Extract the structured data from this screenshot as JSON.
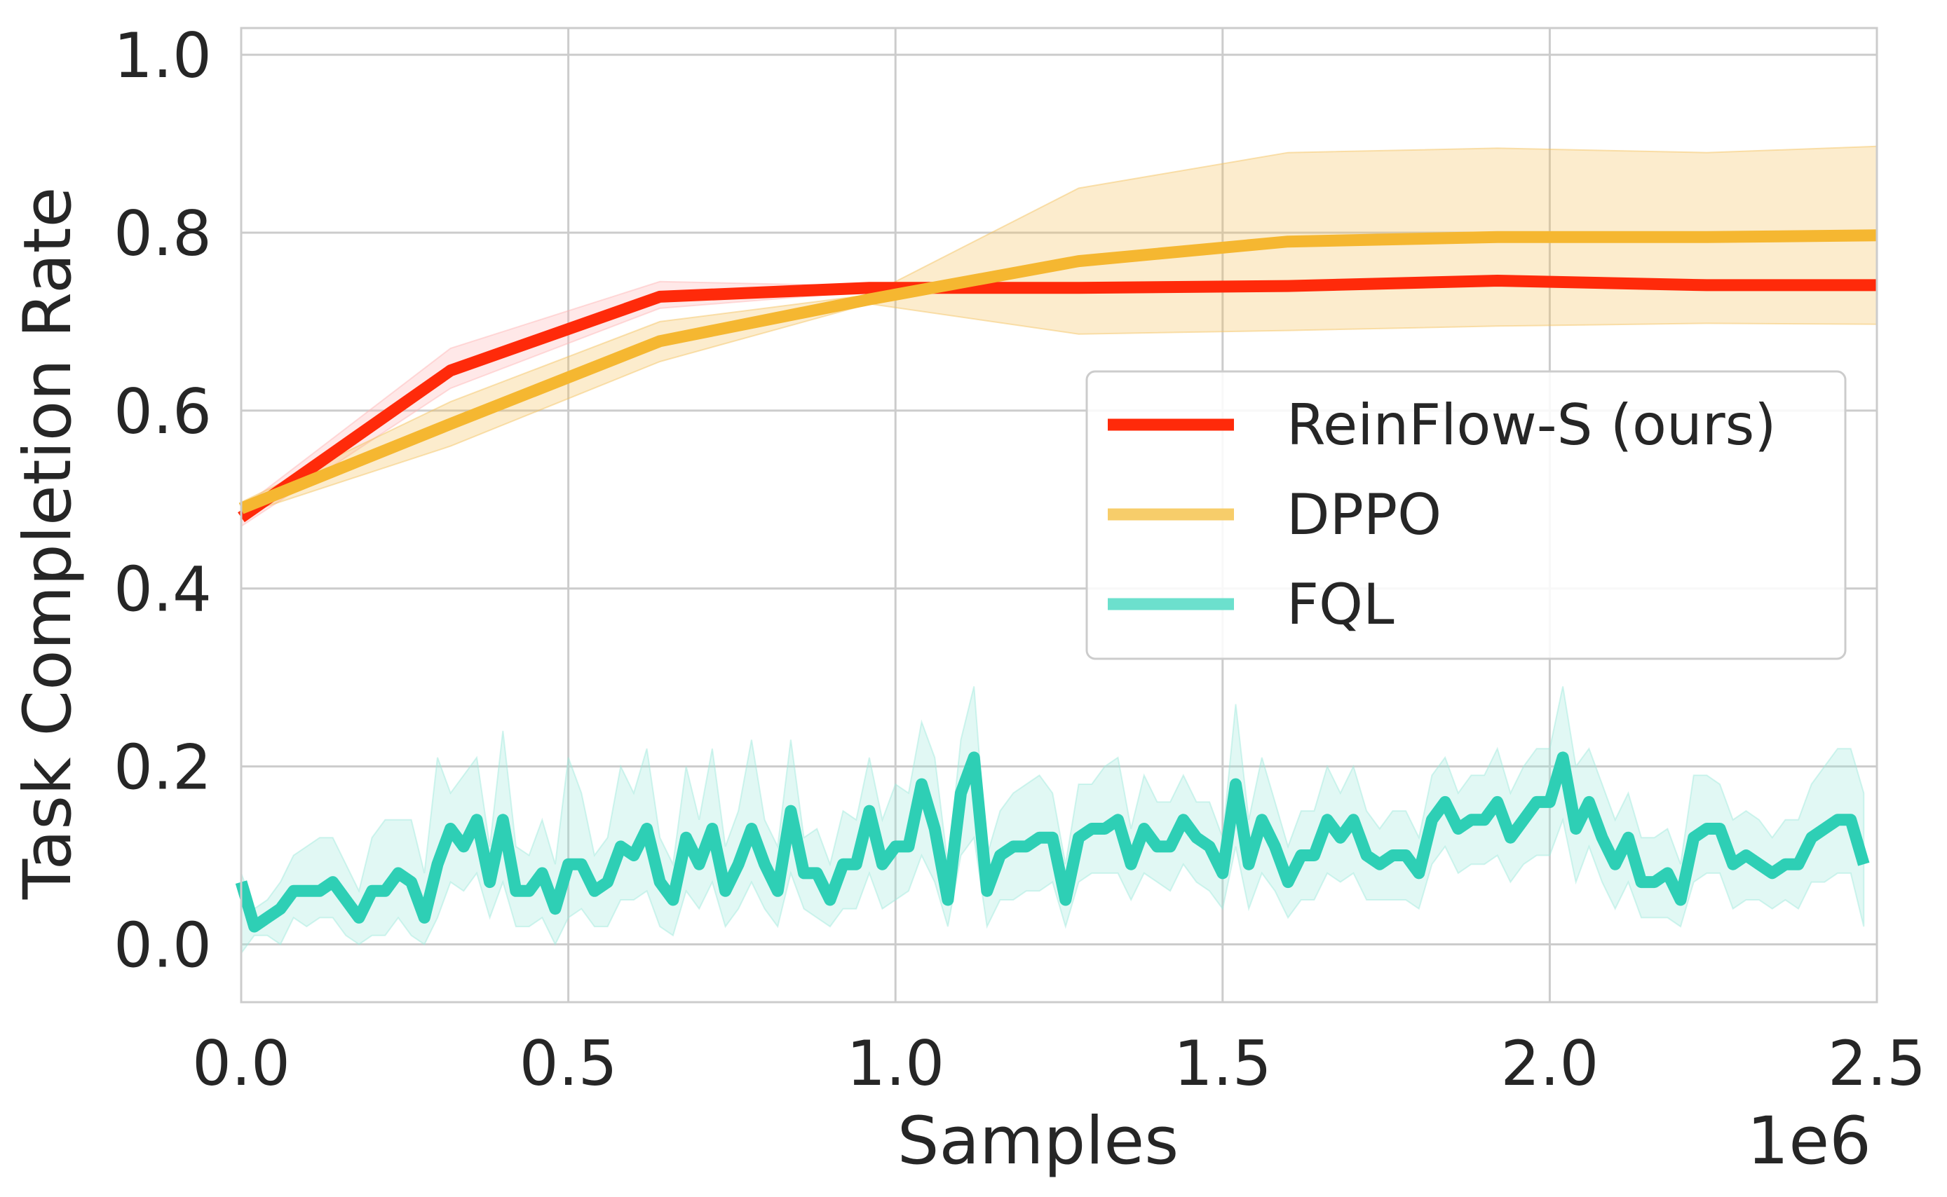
{
  "chart_data": {
    "type": "line",
    "title": "",
    "xlabel": "Samples",
    "ylabel": "Task Completion Rate",
    "x_offset_label": "1e6",
    "xlim": [
      0,
      2500000
    ],
    "ylim": [
      -0.065,
      1.03
    ],
    "xticks": [
      0,
      500000,
      1000000,
      1500000,
      2000000,
      2500000
    ],
    "xtick_labels": [
      "0.0",
      "0.5",
      "1.0",
      "1.5",
      "2.0",
      "2.5"
    ],
    "yticks": [
      0.0,
      0.2,
      0.4,
      0.6,
      0.8,
      1.0
    ],
    "ytick_labels": [
      "0.0",
      "0.2",
      "0.4",
      "0.6",
      "0.8",
      "1.0"
    ],
    "grid": true,
    "legend_position": "center-right",
    "series": [
      {
        "name": "ReinFlow-S (ours)",
        "color": "#FF2A0A",
        "band_color": "#FFB3B3",
        "x": [
          0,
          320000,
          640000,
          960000,
          1280000,
          1600000,
          1920000,
          2240000,
          2500000
        ],
        "y": [
          0.48,
          0.645,
          0.728,
          0.738,
          0.738,
          0.74,
          0.746,
          0.741,
          0.741
        ],
        "upper": [
          0.49,
          0.67,
          0.745,
          0.74,
          0.742,
          0.743,
          0.75,
          0.745,
          0.745
        ],
        "lower": [
          0.47,
          0.625,
          0.715,
          0.734,
          0.734,
          0.737,
          0.742,
          0.737,
          0.737
        ]
      },
      {
        "name": "DPPO",
        "color": "#F5B731",
        "legend_color": "#F7CD6A",
        "band_color": "#F5C15B",
        "x": [
          0,
          320000,
          640000,
          960000,
          1280000,
          1600000,
          1920000,
          2240000,
          2500000
        ],
        "y": [
          0.49,
          0.585,
          0.678,
          0.725,
          0.768,
          0.79,
          0.795,
          0.795,
          0.797
        ],
        "upper": [
          0.497,
          0.61,
          0.7,
          0.73,
          0.85,
          0.89,
          0.895,
          0.89,
          0.897
        ],
        "lower": [
          0.483,
          0.56,
          0.655,
          0.72,
          0.686,
          0.69,
          0.695,
          0.698,
          0.697
        ]
      },
      {
        "name": "FQL",
        "color": "#2ECFB5",
        "legend_color": "#6CE0CD",
        "band_color": "#9DE9DB",
        "x_start": 0,
        "x_step": 20000,
        "y": [
          0.07,
          0.02,
          0.03,
          0.04,
          0.06,
          0.06,
          0.06,
          0.07,
          0.05,
          0.03,
          0.06,
          0.06,
          0.08,
          0.07,
          0.03,
          0.09,
          0.13,
          0.11,
          0.14,
          0.07,
          0.14,
          0.06,
          0.06,
          0.08,
          0.04,
          0.09,
          0.09,
          0.06,
          0.07,
          0.11,
          0.1,
          0.13,
          0.07,
          0.05,
          0.12,
          0.09,
          0.13,
          0.06,
          0.09,
          0.13,
          0.09,
          0.06,
          0.15,
          0.08,
          0.08,
          0.05,
          0.09,
          0.09,
          0.15,
          0.09,
          0.11,
          0.11,
          0.18,
          0.13,
          0.05,
          0.17,
          0.21,
          0.06,
          0.1,
          0.11,
          0.11,
          0.12,
          0.12,
          0.05,
          0.12,
          0.13,
          0.13,
          0.14,
          0.09,
          0.13,
          0.11,
          0.11,
          0.14,
          0.12,
          0.11,
          0.08,
          0.18,
          0.09,
          0.14,
          0.11,
          0.07,
          0.1,
          0.1,
          0.14,
          0.12,
          0.14,
          0.1,
          0.09,
          0.1,
          0.1,
          0.08,
          0.14,
          0.16,
          0.13,
          0.14,
          0.14,
          0.16,
          0.12,
          0.14,
          0.16,
          0.16,
          0.21,
          0.13,
          0.16,
          0.12,
          0.09,
          0.12,
          0.07,
          0.07,
          0.08,
          0.05,
          0.12,
          0.13,
          0.13,
          0.09,
          0.1,
          0.09,
          0.08,
          0.09,
          0.09,
          0.12,
          0.13,
          0.14,
          0.14,
          0.09
        ],
        "upper_pad": [
          0.01,
          0.02,
          0.02,
          0.03,
          0.04,
          0.05,
          0.06,
          0.05,
          0.04,
          0.03,
          0.06,
          0.08,
          0.06,
          0.07,
          0.05,
          0.12,
          0.04,
          0.08,
          0.07,
          0.04,
          0.1,
          0.05,
          0.04,
          0.06,
          0.05,
          0.12,
          0.08,
          0.04,
          0.05,
          0.09,
          0.07,
          0.09,
          0.05,
          0.04,
          0.08,
          0.05,
          0.09,
          0.05,
          0.06,
          0.1,
          0.05,
          0.05,
          0.08,
          0.04,
          0.05,
          0.04,
          0.06,
          0.05,
          0.06,
          0.05,
          0.07,
          0.06,
          0.07,
          0.08,
          0.04,
          0.06,
          0.08,
          0.04,
          0.05,
          0.06,
          0.07,
          0.07,
          0.05,
          0.04,
          0.06,
          0.05,
          0.07,
          0.07,
          0.04,
          0.06,
          0.05,
          0.05,
          0.05,
          0.04,
          0.05,
          0.04,
          0.09,
          0.05,
          0.07,
          0.05,
          0.04,
          0.05,
          0.05,
          0.06,
          0.05,
          0.06,
          0.05,
          0.04,
          0.05,
          0.05,
          0.04,
          0.05,
          0.05,
          0.04,
          0.05,
          0.05,
          0.06,
          0.05,
          0.06,
          0.06,
          0.06,
          0.08,
          0.07,
          0.06,
          0.06,
          0.05,
          0.05,
          0.05,
          0.05,
          0.05,
          0.04,
          0.07,
          0.06,
          0.05,
          0.05,
          0.05,
          0.05,
          0.04,
          0.05,
          0.05,
          0.06,
          0.07,
          0.08,
          0.08,
          0.08
        ],
        "lower_pad": [
          0.08,
          0.01,
          0.02,
          0.04,
          0.03,
          0.04,
          0.03,
          0.04,
          0.04,
          0.03,
          0.05,
          0.05,
          0.05,
          0.06,
          0.03,
          0.06,
          0.06,
          0.05,
          0.06,
          0.04,
          0.07,
          0.04,
          0.04,
          0.05,
          0.04,
          0.06,
          0.05,
          0.04,
          0.05,
          0.06,
          0.05,
          0.07,
          0.05,
          0.04,
          0.06,
          0.05,
          0.06,
          0.04,
          0.05,
          0.06,
          0.05,
          0.04,
          0.07,
          0.04,
          0.05,
          0.03,
          0.05,
          0.05,
          0.07,
          0.05,
          0.06,
          0.05,
          0.08,
          0.06,
          0.03,
          0.07,
          0.09,
          0.04,
          0.05,
          0.06,
          0.05,
          0.06,
          0.05,
          0.03,
          0.05,
          0.05,
          0.05,
          0.06,
          0.04,
          0.05,
          0.04,
          0.05,
          0.05,
          0.05,
          0.05,
          0.04,
          0.07,
          0.05,
          0.06,
          0.05,
          0.04,
          0.05,
          0.05,
          0.06,
          0.05,
          0.06,
          0.05,
          0.04,
          0.05,
          0.05,
          0.04,
          0.05,
          0.05,
          0.05,
          0.05,
          0.05,
          0.06,
          0.05,
          0.05,
          0.06,
          0.06,
          0.07,
          0.06,
          0.05,
          0.05,
          0.05,
          0.05,
          0.04,
          0.04,
          0.05,
          0.03,
          0.05,
          0.05,
          0.05,
          0.05,
          0.05,
          0.04,
          0.04,
          0.04,
          0.05,
          0.05,
          0.06,
          0.06,
          0.06,
          0.07
        ]
      }
    ],
    "colors": {
      "grid": "#CCCCCC",
      "axis_text": "#262626",
      "legend_border": "#CCCCCC"
    }
  }
}
